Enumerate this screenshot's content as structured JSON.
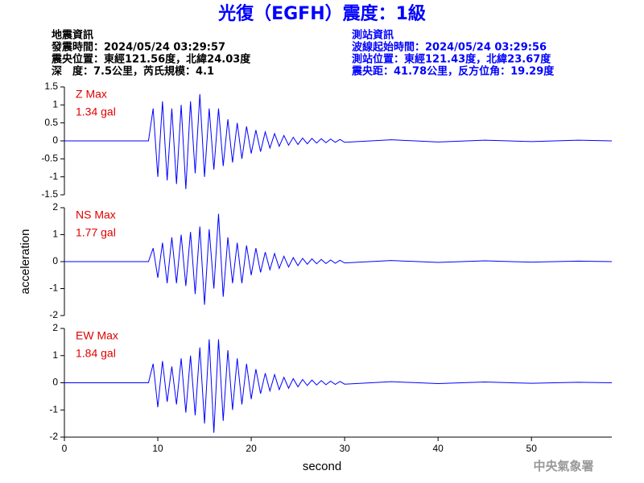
{
  "header": {
    "title": "光復（EGFH）震度：1級",
    "left": [
      "地震資訊",
      "發震時間：2024/05/24 03:29:57",
      "震央位置：東經121.56度，北緯24.03度",
      "深　度：7.5公里，芮氏規模：4.1"
    ],
    "right": [
      "測站資訊",
      "波線起始時間：2024/05/24 03:29:56",
      "測站位置：東經121.43度，北緯23.67度",
      "震央距：41.78公里，反方位角：19.29度"
    ]
  },
  "chart_data": [
    {
      "type": "line",
      "color": "#0000ff",
      "annotations": [
        "Z Max",
        "1.34 gal"
      ],
      "x": [
        0,
        9.0,
        9.5,
        10,
        10.5,
        11,
        11.5,
        12,
        12.5,
        13,
        13.5,
        14,
        14.5,
        15,
        15.5,
        16,
        16.5,
        17,
        17.5,
        18,
        18.5,
        19,
        19.5,
        20,
        20.5,
        21,
        21.5,
        22,
        22.5,
        23,
        23.5,
        24,
        24.5,
        25,
        25.5,
        26,
        26.5,
        27,
        27.5,
        28,
        28.5,
        29,
        29.5,
        30,
        35,
        40,
        45,
        50,
        55,
        58.6
      ],
      "values": [
        0,
        0,
        0.9,
        -1.0,
        1.1,
        -1.1,
        0.9,
        -1.2,
        1.0,
        -1.34,
        1.1,
        -0.9,
        1.3,
        -1.0,
        0.9,
        -0.8,
        0.9,
        -0.7,
        0.6,
        -0.6,
        0.5,
        -0.5,
        0.4,
        -0.35,
        0.3,
        -0.3,
        0.25,
        -0.2,
        0.2,
        -0.15,
        0.15,
        -0.12,
        0.1,
        -0.1,
        0.08,
        -0.08,
        0.07,
        -0.06,
        0.06,
        -0.05,
        0.05,
        -0.04,
        0.04,
        -0.04,
        0.03,
        -0.03,
        0.02,
        -0.02,
        0.02,
        0
      ],
      "xlim": [
        0,
        58.6
      ],
      "ylim": [
        -1.5,
        1.5
      ],
      "yticks": [
        -1.5,
        -1,
        -0.5,
        0,
        0.5,
        1,
        1.5
      ]
    },
    {
      "type": "line",
      "color": "#0000ff",
      "annotations": [
        "NS Max",
        "1.77 gal"
      ],
      "ylabel": "acceleration",
      "x": [
        0,
        9.0,
        9.5,
        10,
        10.5,
        11,
        11.5,
        12,
        12.5,
        13,
        13.5,
        14,
        14.5,
        15,
        15.5,
        16,
        16.5,
        17,
        17.5,
        18,
        18.5,
        19,
        19.5,
        20,
        20.5,
        21,
        21.5,
        22,
        22.5,
        23,
        23.5,
        24,
        24.5,
        25,
        25.5,
        26,
        26.5,
        27,
        27.5,
        28,
        28.5,
        29,
        29.5,
        30,
        35,
        40,
        45,
        50,
        55,
        58.6
      ],
      "values": [
        0,
        0,
        0.5,
        -0.6,
        0.7,
        -0.8,
        0.9,
        -0.8,
        1.0,
        -0.9,
        1.1,
        -1.2,
        1.3,
        -1.6,
        1.2,
        -1.0,
        1.77,
        -1.3,
        0.9,
        -0.8,
        0.7,
        -0.8,
        0.6,
        -0.5,
        0.5,
        -0.4,
        0.35,
        -0.3,
        0.3,
        -0.25,
        0.2,
        -0.2,
        0.15,
        -0.15,
        0.12,
        -0.1,
        0.1,
        -0.08,
        0.08,
        -0.07,
        0.06,
        -0.06,
        0.05,
        -0.05,
        0.04,
        -0.03,
        0.03,
        -0.02,
        0.02,
        0
      ],
      "xlim": [
        0,
        58.6
      ],
      "ylim": [
        -2,
        2
      ],
      "yticks": [
        -2,
        -1,
        0,
        1,
        2
      ]
    },
    {
      "type": "line",
      "color": "#0000ff",
      "annotations": [
        "EW Max",
        "1.84 gal"
      ],
      "xlabel": "second",
      "x": [
        0,
        9.0,
        9.5,
        10,
        10.5,
        11,
        11.5,
        12,
        12.5,
        13,
        13.5,
        14,
        14.5,
        15,
        15.5,
        16,
        16.5,
        17,
        17.5,
        18,
        18.5,
        19,
        19.5,
        20,
        20.5,
        21,
        21.5,
        22,
        22.5,
        23,
        23.5,
        24,
        24.5,
        25,
        25.5,
        26,
        26.5,
        27,
        27.5,
        28,
        28.5,
        29,
        29.5,
        30,
        35,
        40,
        45,
        50,
        55,
        58.6
      ],
      "values": [
        0,
        0,
        0.7,
        -0.9,
        0.8,
        -0.7,
        0.6,
        -0.8,
        0.9,
        -1.1,
        1.0,
        -1.2,
        1.3,
        -1.5,
        1.6,
        -1.84,
        1.6,
        -1.4,
        1.2,
        -1.0,
        0.9,
        -0.8,
        0.7,
        -0.6,
        0.5,
        -0.4,
        0.35,
        -0.3,
        0.3,
        -0.25,
        0.2,
        -0.2,
        0.15,
        -0.15,
        0.12,
        -0.1,
        0.1,
        -0.08,
        0.08,
        -0.07,
        0.06,
        -0.06,
        0.05,
        -0.05,
        0.04,
        -0.03,
        0.03,
        -0.02,
        0.02,
        0
      ],
      "xlim": [
        0,
        58.6
      ],
      "ylim": [
        -2,
        2
      ],
      "yticks": [
        -2,
        -1,
        0,
        1,
        2
      ],
      "xticks": [
        0,
        10,
        20,
        30,
        40,
        50
      ]
    }
  ],
  "footer": "中央氣象署"
}
